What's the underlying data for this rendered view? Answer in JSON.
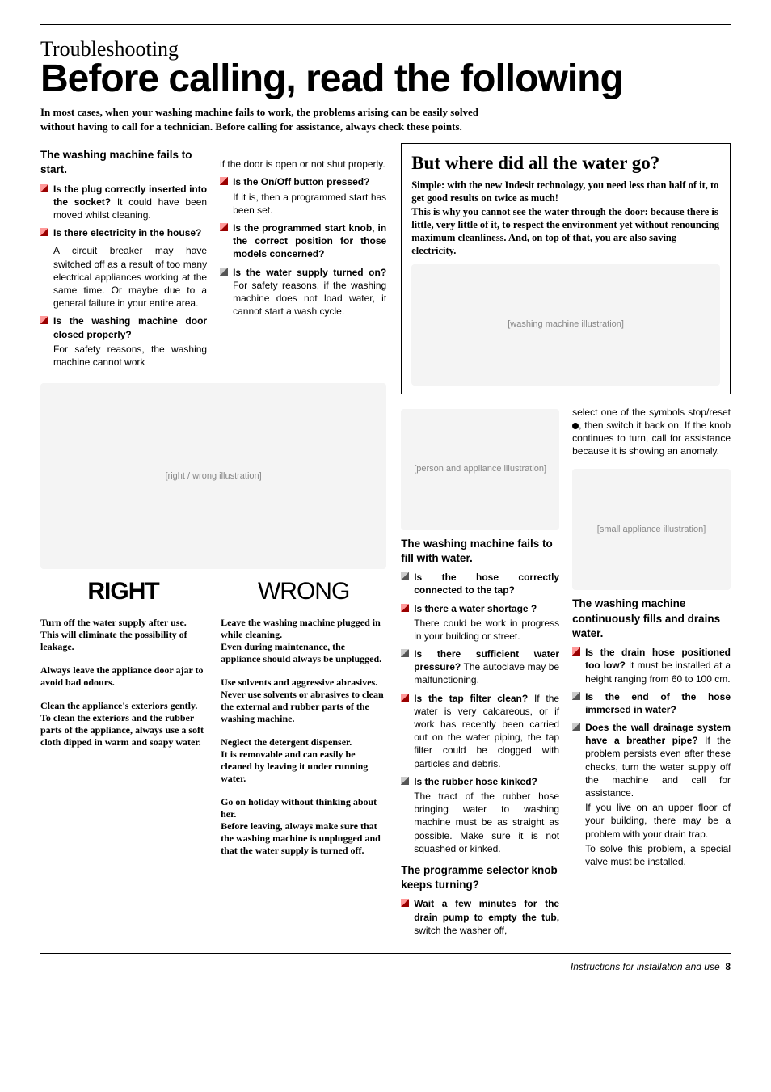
{
  "header": {
    "section": "Troubleshooting",
    "title": "Before calling, read the following",
    "intro": "In most cases, when your washing machine fails to work, the problems arising can be easily solved without  having to call for a technician. Before calling for assistance, always check these points."
  },
  "left": {
    "sub1": "The washing machine fails to start.",
    "b1_bold": "Is the plug correctly inserted into the socket?",
    "b1_rest": " It could have been moved whilst cleaning.",
    "b2_bold": "Is there electricity in the house?",
    "b2_body": "A circuit breaker may have switched off as a result of too many electrical appliances working at the same time. Or maybe due to a general failure in your entire area.",
    "b3_bold": "Is the washing machine door closed properly?",
    "b3_body": "For safety reasons, the washing machine cannot work",
    "cont": "if the door is open or not shut properly.",
    "b4_bold": "Is the On/Off button pressed?",
    "b4_body": "If it is, then a programmed start has been set.",
    "b5_bold": "Is the programmed start knob, in the correct position for those models concerned?",
    "b6_bold": "Is the water supply turned on?",
    "b6_rest": " For safety reasons, if the washing machine does not load water, it cannot start a wash cycle."
  },
  "rightwrong": {
    "right_label": "RIGHT",
    "wrong_label": "WRONG",
    "right": [
      "Turn off the water supply after use.\nThis will eliminate the possibility of leakage.",
      "Always leave the appliance door ajar to avoid bad odours.",
      "Clean the appliance's exteriors gently.\nTo clean the exteriors and the rubber parts of the appliance, always use a soft cloth dipped in warm and soapy water."
    ],
    "wrong": [
      "Leave the washing machine plugged in while cleaning.\nEven during maintenance, the appliance should always be unplugged.",
      "Use solvents and aggressive abrasives.\nNever use solvents or abrasives to clean the external and rubber parts of the washing machine.",
      "Neglect the detergent dispenser.\nIt is removable and can easily be cleaned by leaving it under running water.",
      "Go on holiday without thinking about her.\nBefore leaving, always make sure that the washing machine is unplugged and that the water supply is turned off."
    ]
  },
  "waterbox": {
    "title": "But where did all the water go?",
    "body1": "Simple: with the new Indesit technology,  you need less than half of it, to get good results on twice as much!",
    "body2": "This is why you cannot see the water through the door: because there is little, very little of it, to respect the environment yet without renouncing maximum cleanliness. And, on top of that, you are also saving electricity."
  },
  "mid": {
    "sub2": "The washing machine fails to fill with water.",
    "m1_bold": "Is the hose correctly connected to the tap?",
    "m2_bold": "Is there a water shortage ?",
    "m2_body": "There could be work in progress in your building or street.",
    "m3_bold": "Is there sufficient water pressure?",
    "m3_rest": " The autoclave may be malfunctioning.",
    "m4_bold": "Is the tap filter clean?",
    "m4_rest": " If the water is very calcareous, or if work has recently been carried out on the water piping, the tap filter could be clogged with particles and debris.",
    "m5_bold": "Is the rubber hose kinked?",
    "m5_body": "The tract of the rubber hose bringing water to washing machine must be as straight as possible. Make sure it is not squashed or kinked.",
    "sub3": "The programme selector knob keeps turning?",
    "m6_bold": "Wait a few minutes for the drain pump to empty the tub,",
    "m6_rest": " switch the washer off,"
  },
  "right": {
    "cont2_a": "select one of the symbols stop/reset ",
    "cont2_b": ", then switch it back on. If the knob continues to turn, call for assistance because it is showing an anomaly.",
    "sub4": "The washing machine continuously fills and drains water.",
    "r1_bold": "Is the drain hose positioned too low?",
    "r1_rest": " It must be installed at a height ranging from 60 to 100 cm.",
    "r2_bold": "Is the end of the hose immersed in water?",
    "r3_bold": "Does the wall drainage system have a breather pipe?",
    "r3_rest": " If the problem persists even after these checks, turn the water supply off the machine and call for assistance.",
    "r3_p2": "If you live on an upper floor of your building, there may be a problem with your drain trap.",
    "r3_p3": "To solve this problem, a special valve must be installed."
  },
  "footer": {
    "text": "Instructions for installation and use",
    "page": "8"
  },
  "illus": {
    "water": "[washing machine illustration]",
    "rw": "[right / wrong illustration]",
    "box": "[person and appliance illustration]",
    "small": "[small appliance illustration]"
  }
}
